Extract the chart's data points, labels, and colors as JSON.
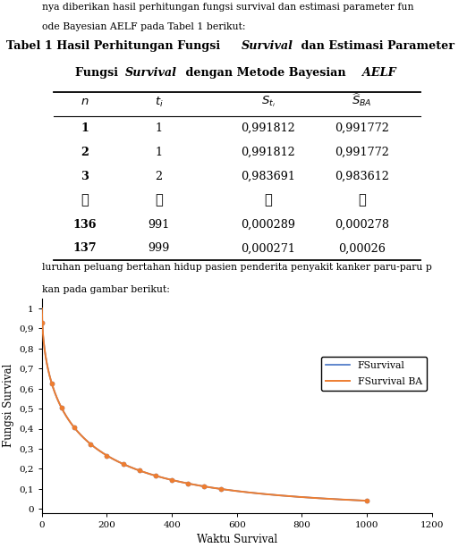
{
  "title_line1_parts": [
    [
      "Tabel 1 Hasil Perhitungan Fungsi ",
      "bold",
      false
    ],
    [
      "Survival",
      "bold",
      true
    ],
    [
      " dan Estimasi Parameter",
      "bold",
      false
    ]
  ],
  "title_line2_parts": [
    [
      "Fungsi ",
      "bold",
      false
    ],
    [
      "Survival",
      "bold",
      true
    ],
    [
      " dengan Metode Bayesian ",
      "bold",
      false
    ],
    [
      "AELF",
      "bold",
      true
    ]
  ],
  "col_headers": [
    "n",
    "t_i",
    "S_ti",
    "S_BA"
  ],
  "rows": [
    [
      "1",
      "1",
      "0,991812",
      "0,991772"
    ],
    [
      "2",
      "1",
      "0,991812",
      "0,991772"
    ],
    [
      "3",
      "2",
      "0,983691",
      "0,983612"
    ],
    [
      "⋮",
      "⋮",
      "⋮",
      "⋮"
    ],
    [
      "136",
      "991",
      "0,000289",
      "0,000278"
    ],
    [
      "137",
      "999",
      "0,000271",
      "0,00026"
    ]
  ],
  "bold_n_rows": [
    0,
    1,
    2,
    4,
    5
  ],
  "dots_row": 3,
  "text_line1": "luruhan peluang bertahan hidup pasien penderita penyakit kanker paru-paru p",
  "text_line2": "kan pada gambar berikut:",
  "xlabel": "Waktu Survival",
  "ylabel": "Fungsi Survival",
  "yticks": [
    0,
    0.1,
    0.2,
    0.3,
    0.4,
    0.5,
    0.6,
    0.7,
    0.8,
    0.9,
    1
  ],
  "ytick_labels": [
    "0",
    "0,1",
    "0,2",
    "0,3",
    "0,4",
    "0,5",
    "0,6",
    "0,7",
    "0,8",
    "0,9",
    "1"
  ],
  "xticks": [
    0,
    200,
    400,
    600,
    800,
    1000,
    1200
  ],
  "xlim": [
    0,
    1200
  ],
  "ylim": [
    -0.02,
    1.05
  ],
  "legend_labels": [
    "FSurvival",
    "FSurvival BA"
  ],
  "line1_color": "#4472C4",
  "line2_color": "#ED7D31",
  "weibull_shape": 0.55,
  "weibull_scale": 120.0,
  "background_color": "#ffffff"
}
